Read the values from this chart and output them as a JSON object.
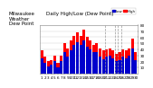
{
  "title": "Milwaukee\nWeather\nDew Point",
  "subtitle": "Daily High/Low (Dew Point)",
  "categories": [
    "1",
    "2",
    "3",
    "4",
    "5",
    "6",
    "7",
    "8",
    "9",
    "10",
    "11",
    "12",
    "13",
    "14",
    "15",
    "16",
    "17",
    "18",
    "19",
    "20",
    "21",
    "22",
    "23",
    "24",
    "25",
    "26",
    "27",
    "28",
    "29",
    "30"
  ],
  "high_values": [
    38,
    28,
    20,
    22,
    30,
    18,
    30,
    50,
    42,
    55,
    62,
    68,
    62,
    72,
    60,
    55,
    48,
    50,
    42,
    38,
    40,
    42,
    38,
    32,
    35,
    40,
    38,
    42,
    58,
    35
  ],
  "low_values": [
    25,
    18,
    12,
    14,
    20,
    10,
    20,
    35,
    28,
    38,
    48,
    52,
    48,
    55,
    45,
    40,
    35,
    36,
    28,
    24,
    28,
    30,
    25,
    20,
    22,
    28,
    25,
    30,
    42,
    22
  ],
  "high_color": "#ff0000",
  "low_color": "#0000cc",
  "background_color": "#ffffff",
  "plot_bg_color": "#ffffff",
  "ylim": [
    0,
    80
  ],
  "yticks": [
    10,
    20,
    30,
    40,
    50,
    60,
    70,
    80
  ],
  "grid_color": "#cccccc",
  "dashed_vlines": [
    19.5,
    22.5,
    23.5,
    24.5
  ],
  "legend_high": "High",
  "legend_low": "Low",
  "bar_width": 0.42,
  "title_fontsize": 4.0,
  "tick_fontsize": 3.0
}
